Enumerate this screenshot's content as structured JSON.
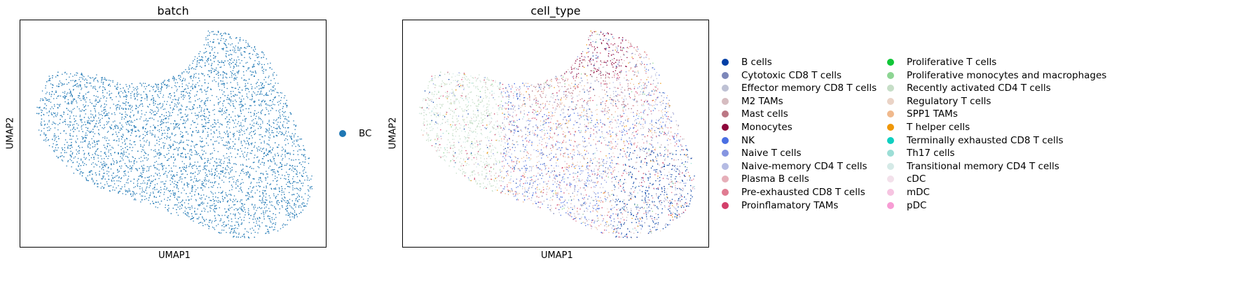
{
  "chart_data": [
    {
      "type": "scatter",
      "title": "batch",
      "xlabel": "UMAP1",
      "ylabel": "UMAP2",
      "grid": false,
      "legend_position": "right",
      "series": [
        {
          "name": "BC",
          "color": "#1f77b4"
        }
      ]
    },
    {
      "type": "scatter",
      "title": "cell_type",
      "xlabel": "UMAP1",
      "ylabel": "UMAP2",
      "grid": false,
      "legend_position": "right",
      "series": [
        {
          "name": "B cells",
          "color": "#023fa5"
        },
        {
          "name": "Cytotoxic CD8 T cells",
          "color": "#7d87b9"
        },
        {
          "name": "Effector memory CD8 T cells",
          "color": "#bec1d4"
        },
        {
          "name": "M2 TAMs",
          "color": "#d6bcc0"
        },
        {
          "name": "Mast cells",
          "color": "#bb7784"
        },
        {
          "name": "Monocytes",
          "color": "#8e063b"
        },
        {
          "name": "NK",
          "color": "#4a6fe3"
        },
        {
          "name": "Naive T cells",
          "color": "#8595e1"
        },
        {
          "name": "Naive-memory CD4 T cells",
          "color": "#b5bbe3"
        },
        {
          "name": "Plasma B cells",
          "color": "#e6afb9"
        },
        {
          "name": "Pre-exhausted CD8 T cells",
          "color": "#e07b91"
        },
        {
          "name": "Proinflamatory TAMs",
          "color": "#d33f6a"
        },
        {
          "name": "Proliferative T cells",
          "color": "#11c638"
        },
        {
          "name": "Proliferative monocytes and macrophages",
          "color": "#8dd593"
        },
        {
          "name": "Recently activated CD4 T cells",
          "color": "#c6dec7"
        },
        {
          "name": "Regulatory T cells",
          "color": "#ead3c6"
        },
        {
          "name": "SPP1 TAMs",
          "color": "#f0b98d"
        },
        {
          "name": "T helper cells",
          "color": "#ef9708"
        },
        {
          "name": "Terminally exhausted CD8 T cells",
          "color": "#0fcfc0"
        },
        {
          "name": "Th17 cells",
          "color": "#9cded6"
        },
        {
          "name": "Transitional memory CD4 T cells",
          "color": "#d5eae7"
        },
        {
          "name": "cDC",
          "color": "#f3e1eb"
        },
        {
          "name": "mDC",
          "color": "#f6c4e1"
        },
        {
          "name": "pDC",
          "color": "#f79cd4"
        }
      ]
    }
  ]
}
